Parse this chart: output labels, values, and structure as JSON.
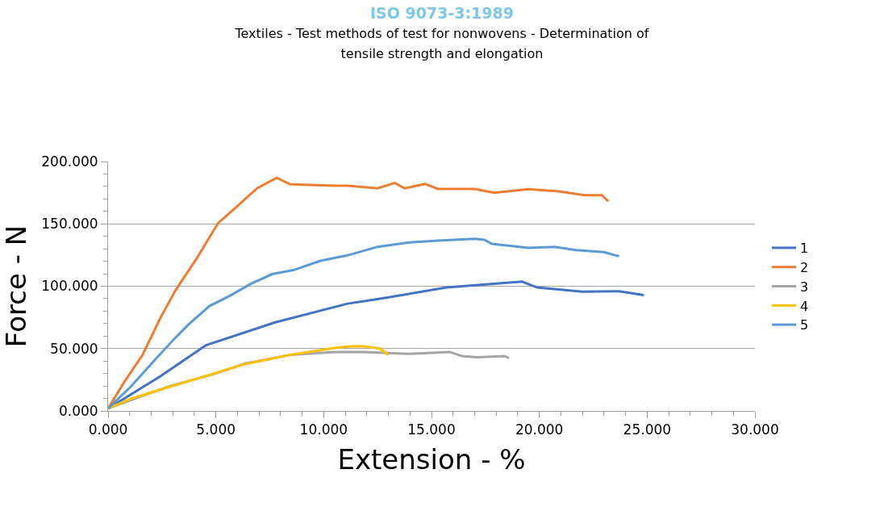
{
  "chart_data": {
    "type": "line",
    "title": "ISO 9073-3:1989",
    "subtitle": "Textiles - Test methods of test for nonwovens - Determination of tensile strength and elongation",
    "xlabel": "Extension - %",
    "ylabel": "Force - N",
    "xlim": [
      0,
      30
    ],
    "ylim": [
      0,
      200
    ],
    "xticks": [
      {
        "value": 0,
        "label": "0.000"
      },
      {
        "value": 1,
        "label": null
      },
      {
        "value": 2,
        "label": null
      },
      {
        "value": 3,
        "label": null
      },
      {
        "value": 4,
        "label": null
      },
      {
        "value": 5,
        "label": "5.000"
      },
      {
        "value": 6,
        "label": null
      },
      {
        "value": 7,
        "label": null
      },
      {
        "value": 8,
        "label": null
      },
      {
        "value": 9,
        "label": null
      },
      {
        "value": 10,
        "label": "10.000"
      },
      {
        "value": 11,
        "label": null
      },
      {
        "value": 12,
        "label": null
      },
      {
        "value": 13,
        "label": null
      },
      {
        "value": 14,
        "label": null
      },
      {
        "value": 15,
        "label": "15.000"
      },
      {
        "value": 16,
        "label": null
      },
      {
        "value": 17,
        "label": null
      },
      {
        "value": 18,
        "label": null
      },
      {
        "value": 19,
        "label": null
      },
      {
        "value": 20,
        "label": "20.000"
      },
      {
        "value": 21,
        "label": null
      },
      {
        "value": 22,
        "label": null
      },
      {
        "value": 23,
        "label": null
      },
      {
        "value": 24,
        "label": null
      },
      {
        "value": 25,
        "label": "25.000"
      },
      {
        "value": 26,
        "label": null
      },
      {
        "value": 27,
        "label": null
      },
      {
        "value": 28,
        "label": null
      },
      {
        "value": 29,
        "label": null
      },
      {
        "value": 30,
        "label": "30.000"
      }
    ],
    "yticks": [
      {
        "value": 0,
        "label": "0.000"
      },
      {
        "value": 10,
        "label": null
      },
      {
        "value": 20,
        "label": null
      },
      {
        "value": 30,
        "label": null
      },
      {
        "value": 40,
        "label": null
      },
      {
        "value": 50,
        "label": "50.000"
      },
      {
        "value": 60,
        "label": null
      },
      {
        "value": 70,
        "label": null
      },
      {
        "value": 80,
        "label": null
      },
      {
        "value": 90,
        "label": null
      },
      {
        "value": 100,
        "label": "100.000"
      },
      {
        "value": 110,
        "label": null
      },
      {
        "value": 120,
        "label": null
      },
      {
        "value": 130,
        "label": null
      },
      {
        "value": 140,
        "label": null
      },
      {
        "value": 150,
        "label": "150.000"
      },
      {
        "value": 160,
        "label": null
      },
      {
        "value": 170,
        "label": null
      },
      {
        "value": 180,
        "label": null
      },
      {
        "value": 190,
        "label": null
      },
      {
        "value": 200,
        "label": "200.000"
      }
    ],
    "grid": "y",
    "legend": "right",
    "marker": "none",
    "line_style": "solid",
    "series": [
      {
        "name": "1",
        "color": "#4472c4",
        "x": [
          0,
          2.44,
          4.54,
          7.75,
          11.1,
          11.94,
          12.9,
          15.7,
          19.2,
          19.9,
          22,
          23.7,
          24.85
        ],
        "values": [
          2,
          28,
          52.7,
          71,
          86,
          88.2,
          90.8,
          99,
          103.7,
          99,
          95.7,
          96,
          92.9
        ]
      },
      {
        "name": "2",
        "color": "#ed7d31",
        "x": [
          0,
          0.77,
          1.6,
          2.44,
          3.14,
          4.12,
          5.1,
          5.94,
          6.91,
          7.82,
          8.45,
          10.5,
          11.1,
          12.5,
          13.3,
          13.75,
          14.7,
          15.3,
          17,
          17.9,
          19.5,
          20.9,
          22.1,
          22.9,
          23.2
        ],
        "values": [
          2,
          23.7,
          45,
          75,
          97,
          122.6,
          150.5,
          163.4,
          178.5,
          187,
          181.7,
          180.6,
          180.6,
          178.5,
          182.8,
          178.5,
          182,
          178,
          178,
          175,
          177.9,
          176,
          173,
          173,
          168
        ]
      },
      {
        "name": "3",
        "color": "#a5a5a5",
        "x": [
          0,
          2.86,
          5,
          6.35,
          8.45,
          10.5,
          11.9,
          13.9,
          15.85,
          16.4,
          17.1,
          18.4,
          18.6
        ],
        "values": [
          2,
          20,
          30,
          38,
          45,
          47.3,
          47.3,
          45.8,
          47.3,
          44,
          43,
          44,
          42.4
        ]
      },
      {
        "name": "4",
        "color": "#ffc000",
        "x": [
          0,
          1.05,
          2.86,
          4.54,
          6.35,
          8.45,
          10.5,
          11.1,
          11.8,
          12.6,
          13
        ],
        "values": [
          2,
          9.7,
          19.4,
          28,
          37.6,
          45,
          50.5,
          51.6,
          52,
          50,
          45
        ]
      },
      {
        "name": "5",
        "color": "#5b9bd5",
        "x": [
          0,
          1.05,
          2.17,
          3.14,
          3.7,
          4.68,
          5.66,
          6.63,
          7.61,
          8.59,
          9.85,
          11.1,
          12.5,
          13.9,
          15.3,
          17,
          17.45,
          17.8,
          19.5,
          20.7,
          21.7,
          23,
          23.7
        ],
        "values": [
          2,
          19.4,
          40.9,
          59,
          68.8,
          83.9,
          92.5,
          102,
          109.7,
          112.9,
          120.4,
          124.7,
          131.6,
          135,
          136.6,
          138,
          137.2,
          134,
          130.8,
          131.6,
          129,
          127.3,
          124
        ]
      }
    ]
  }
}
